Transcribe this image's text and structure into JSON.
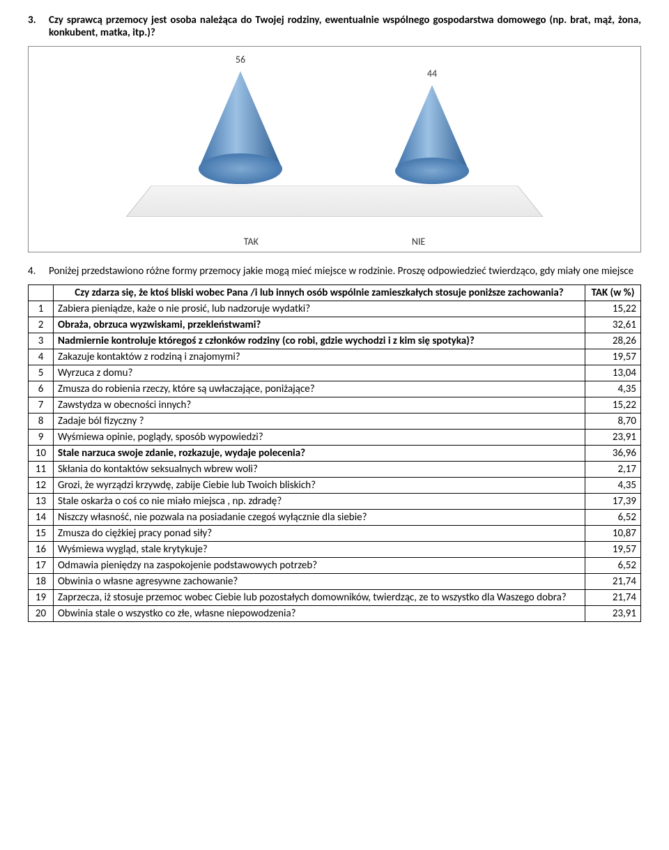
{
  "q3": {
    "num": "3.",
    "text": "Czy sprawcą przemocy jest osoba należąca do Twojej rodziny, ewentualnie wspólnego gospodarstwa domowego (np. brat, mąż, żona, konkubent, matka, itp.)?"
  },
  "chart": {
    "type": "cone",
    "categories": [
      "TAK",
      "NIE"
    ],
    "values": [
      56,
      44
    ],
    "cone_color_light": "#8ab4dd",
    "cone_color_dark": "#3b6fa8",
    "label_fontsize": 14
  },
  "q4": {
    "num": "4.",
    "text": "Poniżej przedstawiono różne formy przemocy jakie mogą mieć miejsce w rodzinie. Proszę odpowiedzieć twierdząco, gdy miały one miejsce"
  },
  "table": {
    "header_q": "Czy zdarza się, że ktoś bliski wobec Pana /i lub innych osób wspólnie zamieszkałych stosuje poniższe zachowania?",
    "header_v": "TAK (w %)",
    "rows": [
      {
        "n": "1",
        "t": "Zabiera pieniądze, każe o nie prosić, lub nadzoruje wydatki?",
        "v": "15,22",
        "b": false
      },
      {
        "n": "2",
        "t": "Obraża, obrzuca wyzwiskami, przekleństwami?",
        "v": "32,61",
        "b": true
      },
      {
        "n": "3",
        "t": "Nadmiernie kontroluje któregoś z członków rodziny (co robi, gdzie wychodzi i z kim się spotyka)?",
        "v": "28,26",
        "b": true
      },
      {
        "n": "4",
        "t": "Zakazuje kontaktów z rodziną i znajomymi?",
        "v": "19,57",
        "b": false
      },
      {
        "n": "5",
        "t": "Wyrzuca z domu?",
        "v": "13,04",
        "b": false
      },
      {
        "n": "6",
        "t": "Zmusza do robienia rzeczy, które są uwłaczające, poniżające?",
        "v": "4,35",
        "b": false
      },
      {
        "n": "7",
        "t": "Zawstydza w obecności innych?",
        "v": "15,22",
        "b": false
      },
      {
        "n": "8",
        "t": "Zadaje ból fizyczny ?",
        "v": "8,70",
        "b": false
      },
      {
        "n": "9",
        "t": "Wyśmiewa  opinie, poglądy, sposób wypowiedzi?",
        "v": "23,91",
        "b": false
      },
      {
        "n": "10",
        "t": "Stale narzuca swoje zdanie, rozkazuje, wydaje polecenia?",
        "v": "36,96",
        "b": true
      },
      {
        "n": "11",
        "t": "Skłania do kontaktów seksualnych wbrew woli?",
        "v": "2,17",
        "b": false
      },
      {
        "n": "12",
        "t": "Grozi, że wyrządzi krzywdę, zabije Ciebie lub Twoich bliskich?",
        "v": "4,35",
        "b": false
      },
      {
        "n": "13",
        "t": "Stale oskarża o coś co nie miało miejsca , np.  zdradę?",
        "v": "17,39",
        "b": false
      },
      {
        "n": "14",
        "t": "Niszczy własność, nie pozwala na posiadanie czegoś wyłącznie dla siebie?",
        "v": "6,52",
        "b": false
      },
      {
        "n": "15",
        "t": "Zmusza do ciężkiej pracy ponad siły?",
        "v": "10,87",
        "b": false
      },
      {
        "n": "16",
        "t": "Wyśmiewa wygląd, stale krytykuje?",
        "v": "19,57",
        "b": false
      },
      {
        "n": "17",
        "t": "Odmawia pieniędzy na zaspokojenie podstawowych potrzeb?",
        "v": "6,52",
        "b": false
      },
      {
        "n": "18",
        "t": "Obwinia o własne agresywne zachowanie?",
        "v": "21,74",
        "b": false
      },
      {
        "n": "19",
        "t": "Zaprzecza, iż stosuje przemoc wobec Ciebie lub pozostałych domowników, twierdząc, ze to wszystko dla Waszego dobra?",
        "v": "21,74",
        "b": false
      },
      {
        "n": "20",
        "t": "Obwinia  stale o wszystko co złe, własne niepowodzenia?",
        "v": "23,91",
        "b": false
      }
    ]
  }
}
